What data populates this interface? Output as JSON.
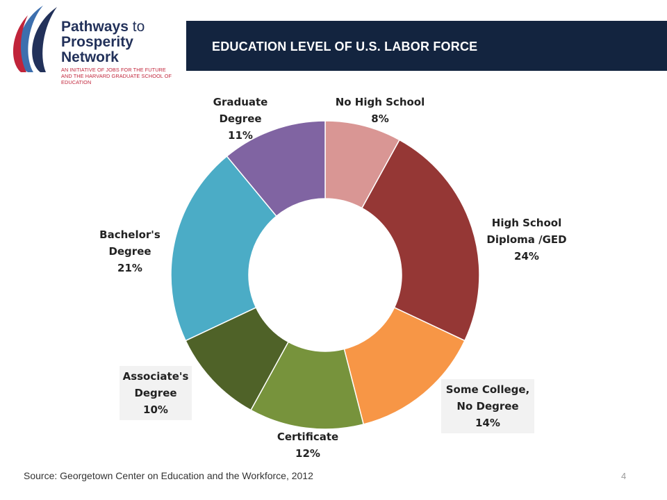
{
  "header": {
    "title": "EDUCATION LEVEL OF U.S. LABOR FORCE",
    "logo": {
      "line1_bold": "Pathways",
      "line1_rest": "to",
      "line2": "Prosperity Network",
      "tagline": "AN INITIATIVE OF JOBS FOR THE FUTURE AND THE HARVARD GRADUATE SCHOOL OF EDUCATION"
    }
  },
  "footer": {
    "source": "Source: Georgetown Center on Education and the Workforce, 2012",
    "page_number": "4"
  },
  "colors": {
    "header_bg": "#13243f",
    "logo_navy": "#22315a",
    "logo_red": "#c0243a",
    "logo_blue": "#3d6fae"
  },
  "chart_data": {
    "type": "pie",
    "donut": true,
    "title": "",
    "slices": [
      {
        "label": [
          "No High School"
        ],
        "value": 8,
        "display": "8%",
        "color": "#d99694"
      },
      {
        "label": [
          "High School",
          "Diploma  /GED"
        ],
        "value": 24,
        "display": "24%",
        "color": "#953735"
      },
      {
        "label": [
          "Some College,",
          "No Degree"
        ],
        "value": 14,
        "display": "14%",
        "color": "#f79646"
      },
      {
        "label": [
          "Certificate"
        ],
        "value": 12,
        "display": "12%",
        "color": "#77933c"
      },
      {
        "label": [
          "Associate's",
          "Degree"
        ],
        "value": 10,
        "display": "10%",
        "color": "#4f6228"
      },
      {
        "label": [
          "Bachelor's",
          "Degree"
        ],
        "value": 21,
        "display": "21%",
        "color": "#4bacc6"
      },
      {
        "label": [
          "Graduate",
          "Degree"
        ],
        "value": 11,
        "display": "11%",
        "color": "#8064a2"
      }
    ]
  }
}
